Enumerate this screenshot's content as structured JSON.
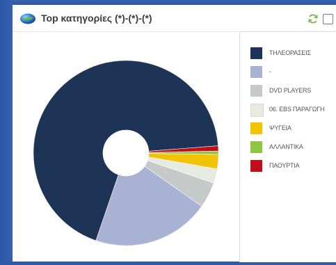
{
  "header": {
    "title": "Top κατηγορίες (*)-(*)-(*)"
  },
  "icons": {
    "logo": "globe-logo-icon",
    "refresh": "refresh-icon",
    "checkbox": "checkbox-icon"
  },
  "chart_data": {
    "type": "pie",
    "donut": true,
    "title": "Top κατηγορίες (*)-(*)-(*)",
    "legend_position": "right",
    "categories": [
      "ΤΗΛΕΟΡΑΣΕΙΣ",
      "-",
      "DVD PLAYERS",
      "06. EBS ΠΑΡΑΓΩΓΗ",
      "ΨΥΓΕΙΑ",
      "ΑΛΛΑΝΤΙΚΑ",
      "ΠΑΟΥΡΤΙΑ"
    ],
    "values": [
      68.5,
      20.5,
      4.5,
      2.5,
      2.5,
      0.6,
      0.9
    ],
    "colors": [
      "#1d3456",
      "#a8b2d2",
      "#c5cac8",
      "#e6ebe1",
      "#f2c204",
      "#8dc63f",
      "#c00f16"
    ]
  }
}
